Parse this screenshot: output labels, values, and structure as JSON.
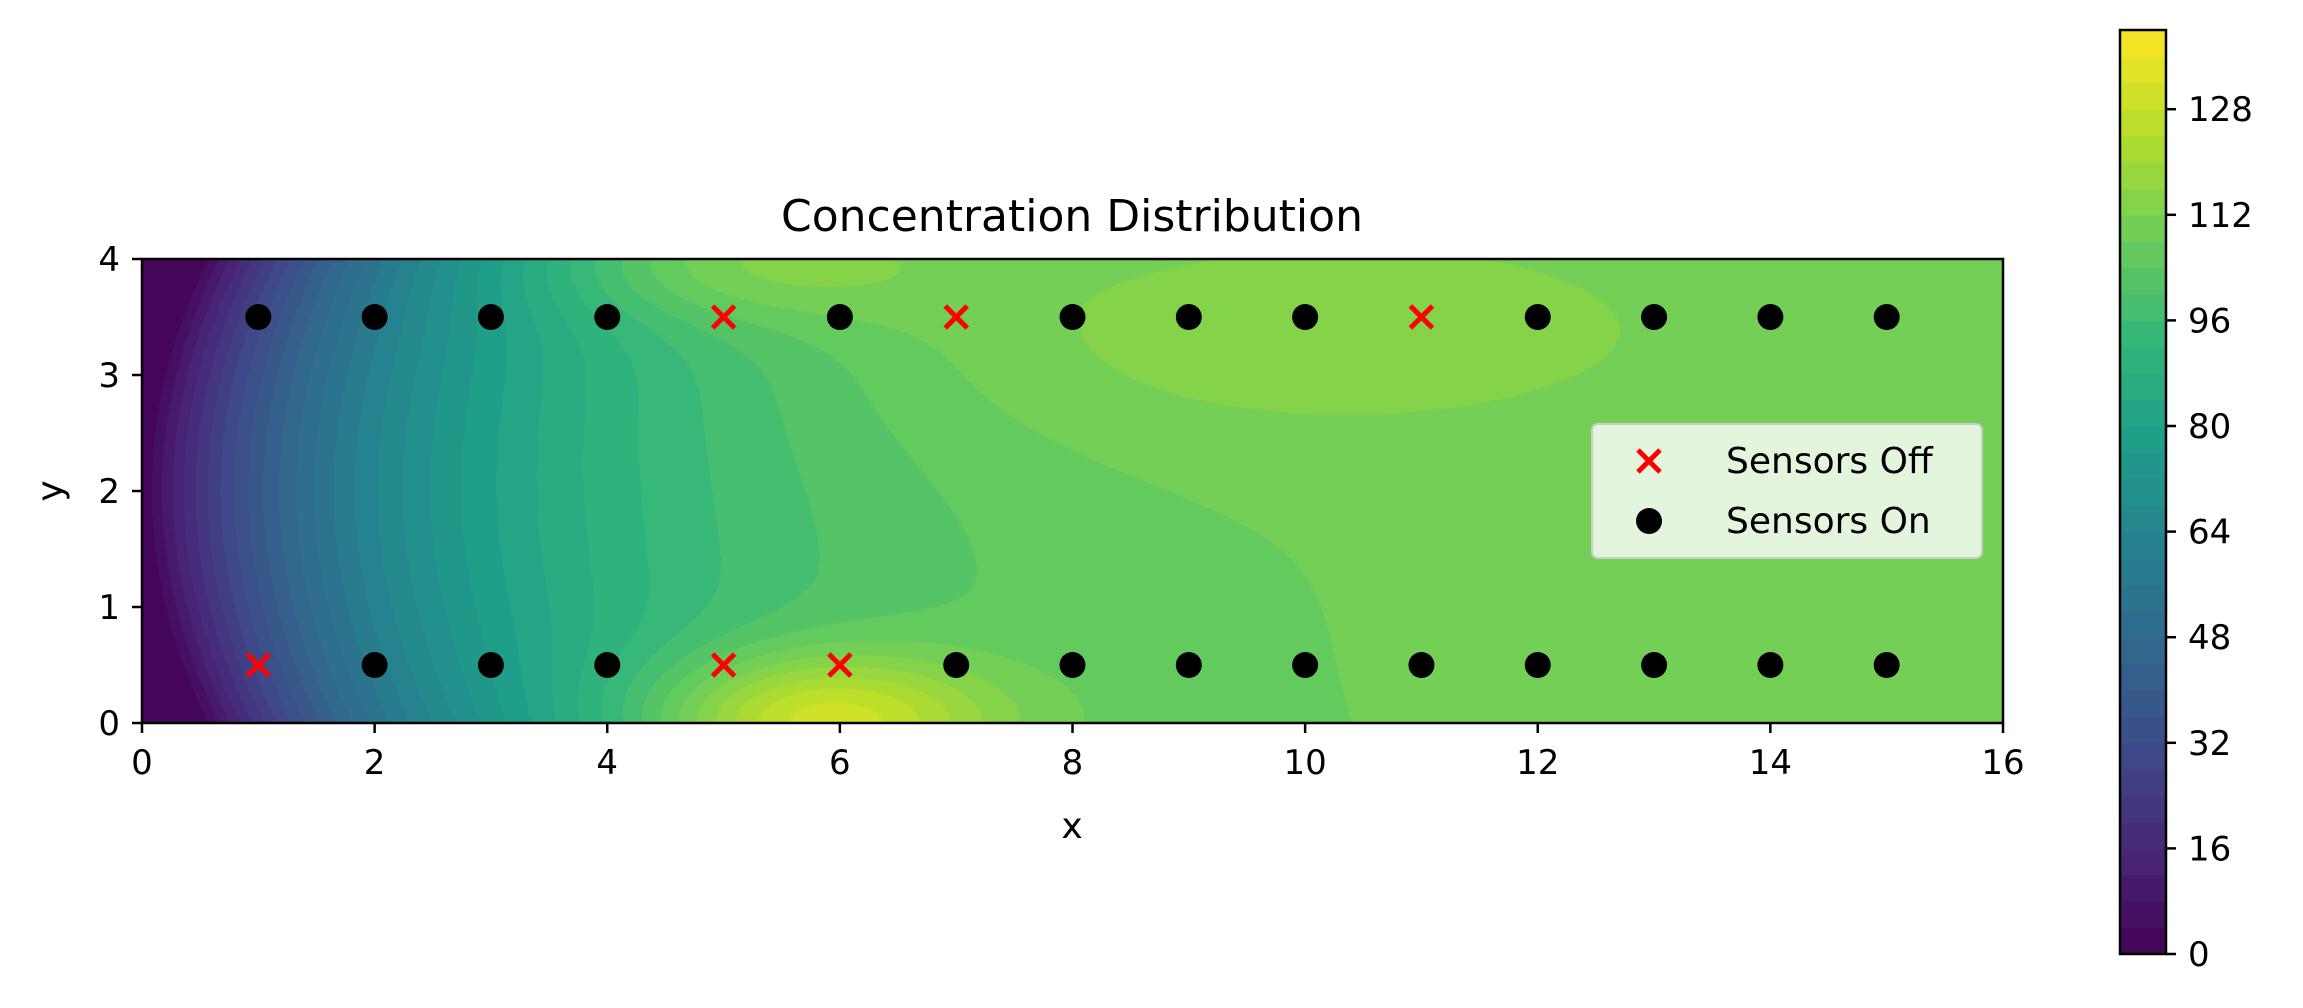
{
  "chart_data": {
    "type": "heatmap",
    "title": "Concentration Distribution",
    "xlabel": "x",
    "ylabel": "y",
    "xlim": [
      0,
      16
    ],
    "ylim": [
      0,
      4
    ],
    "xticks": [
      0,
      2,
      4,
      6,
      8,
      10,
      12,
      14,
      16
    ],
    "yticks": [
      0,
      1,
      2,
      3,
      4
    ],
    "colorbar": {
      "colormap": "viridis",
      "range": [
        0,
        140
      ],
      "ticks": [
        0,
        16,
        32,
        48,
        64,
        80,
        96,
        112,
        128
      ]
    },
    "legend": {
      "placement": "center-right",
      "entries": [
        {
          "label": "Sensors Off",
          "marker": "x",
          "color": "#ff0000"
        },
        {
          "label": "Sensors On",
          "marker": "o",
          "color": "#000000"
        }
      ]
    },
    "series": [
      {
        "name": "Sensors Off",
        "points": [
          [
            1,
            0.5
          ],
          [
            5,
            3.5
          ],
          [
            5,
            0.5
          ],
          [
            6,
            0.5
          ],
          [
            7,
            3.5
          ],
          [
            11,
            3.5
          ]
        ]
      },
      {
        "name": "Sensors On",
        "points": [
          [
            1,
            3.5
          ],
          [
            2,
            3.5
          ],
          [
            3,
            3.5
          ],
          [
            4,
            3.5
          ],
          [
            6,
            3.5
          ],
          [
            8,
            3.5
          ],
          [
            9,
            3.5
          ],
          [
            10,
            3.5
          ],
          [
            12,
            3.5
          ],
          [
            13,
            3.5
          ],
          [
            14,
            3.5
          ],
          [
            15,
            3.5
          ],
          [
            2,
            0.5
          ],
          [
            3,
            0.5
          ],
          [
            4,
            0.5
          ],
          [
            7,
            0.5
          ],
          [
            8,
            0.5
          ],
          [
            9,
            0.5
          ],
          [
            10,
            0.5
          ],
          [
            11,
            0.5
          ],
          [
            12,
            0.5
          ],
          [
            13,
            0.5
          ],
          [
            14,
            0.5
          ],
          [
            15,
            0.5
          ]
        ]
      }
    ]
  }
}
